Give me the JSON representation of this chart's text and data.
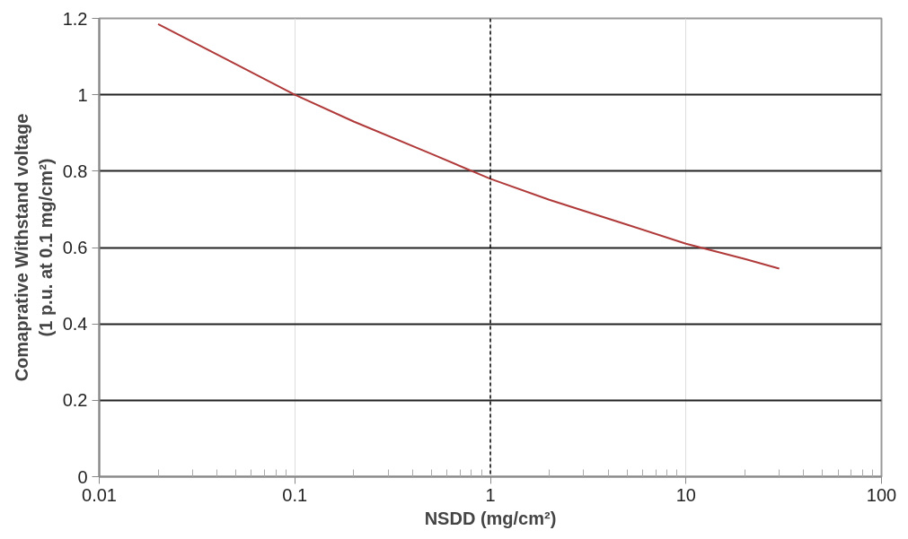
{
  "chart_data": {
    "type": "line",
    "xlabel": "NSDD (mg/cm²)",
    "ylabel": "Comaprative Withstand voltage\n(1 p.u. at 0.1 mg/cm²)",
    "x": [
      0.02,
      0.05,
      0.1,
      0.2,
      0.5,
      1,
      2,
      5,
      10,
      20,
      30
    ],
    "series": [
      {
        "color": "#b03a3a",
        "values": [
          1.185,
          1.08,
          1.0,
          0.93,
          0.845,
          0.78,
          0.725,
          0.66,
          0.61,
          0.57,
          0.545
        ]
      }
    ],
    "log": "x",
    "xlim": [
      0.01,
      100
    ],
    "xticks": [
      0.01,
      0.1,
      1,
      10,
      100
    ],
    "ylim": [
      0,
      1.2
    ],
    "yticks": [
      0,
      0.2,
      0.4,
      0.6,
      0.8,
      1,
      1.2
    ],
    "grid": true,
    "ref_lines": [
      {
        "axis": "x",
        "value": 1,
        "color": "#000000",
        "line_style": "dashed"
      }
    ],
    "marker": "none",
    "line_style": "solid"
  }
}
